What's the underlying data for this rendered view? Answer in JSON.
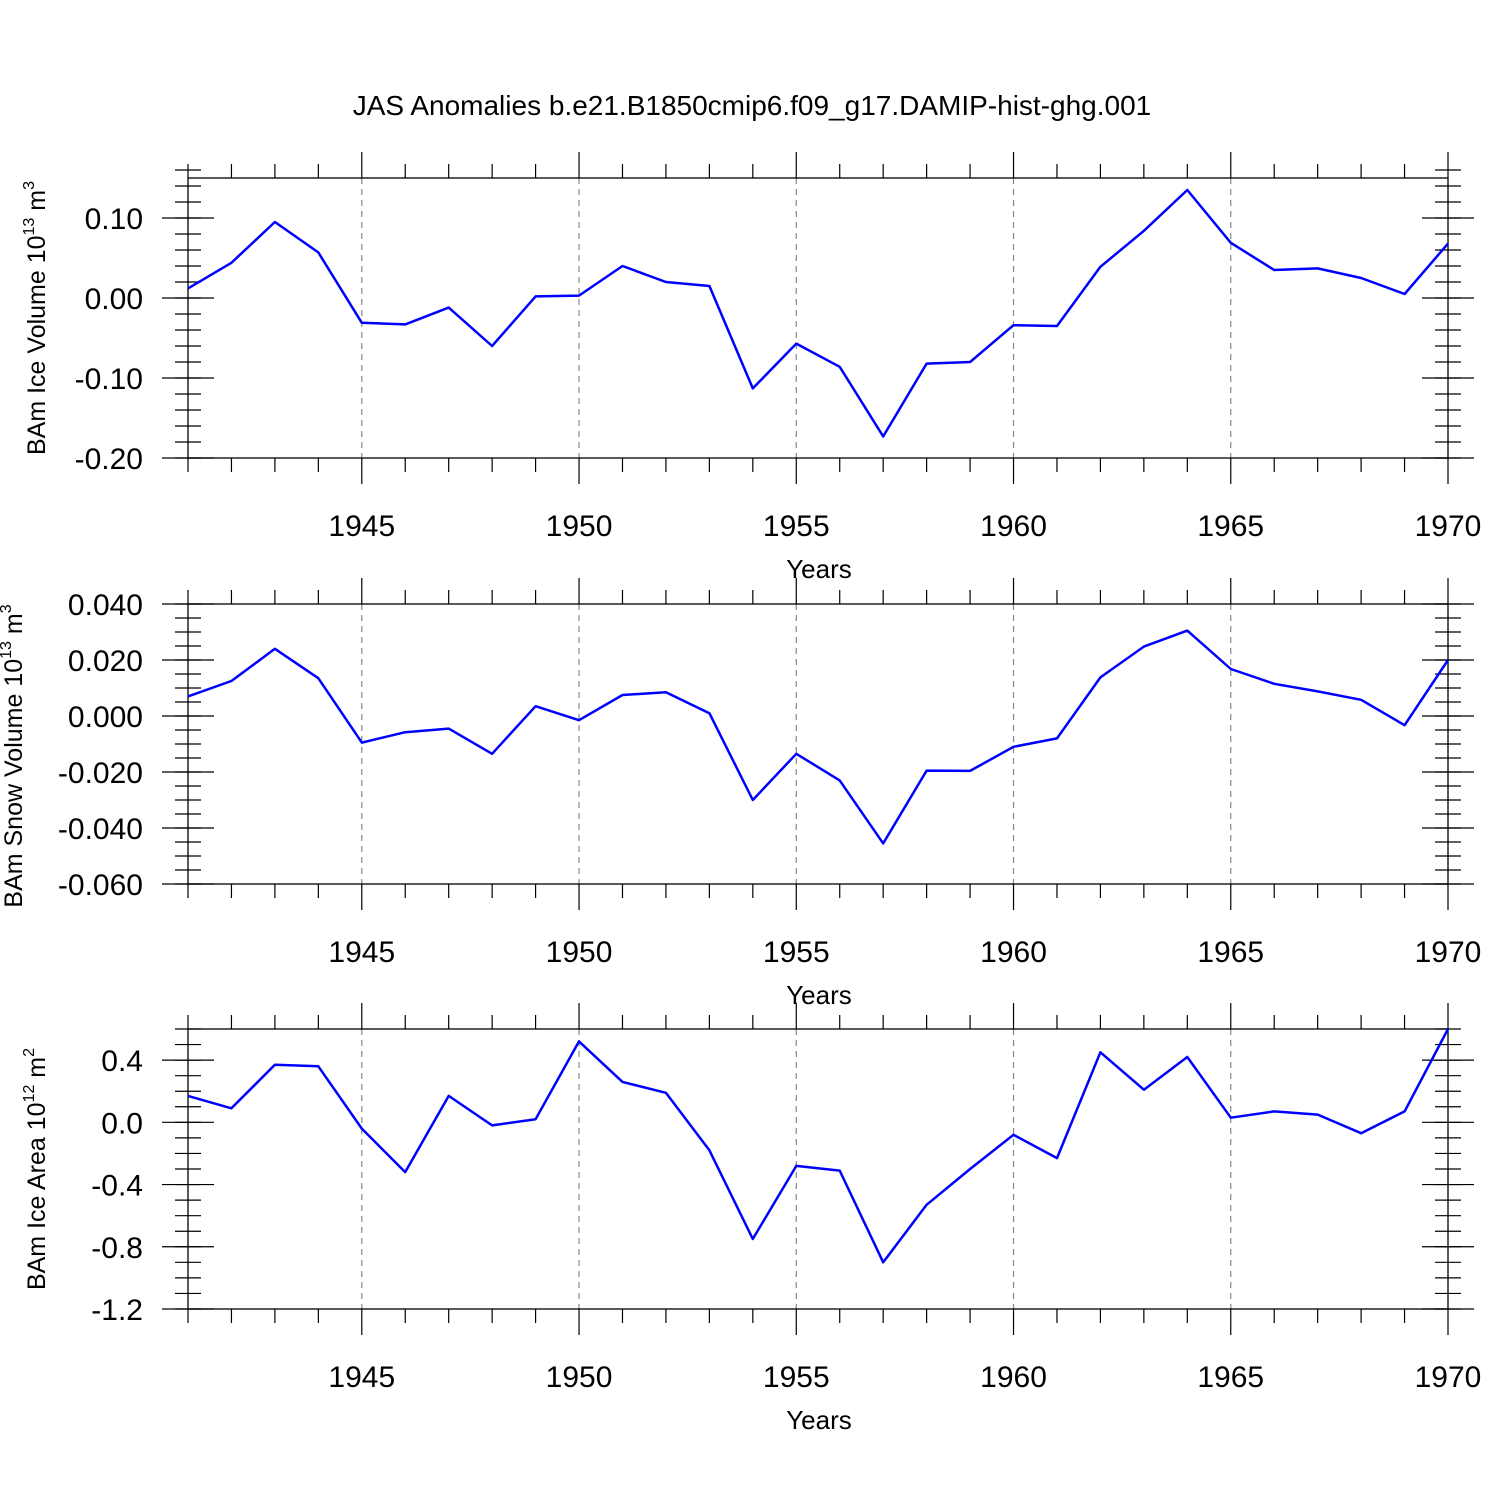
{
  "chart_data": [
    {
      "type": "line",
      "title": "JAS Anomalies b.e21.B1850cmip6.f09_g17.DAMIP-hist-ghg.001",
      "xlabel": "Years",
      "ylabel": "BAm Ice Volume 10",
      "ylabel_exp": "13",
      "ylabel_unit": " m",
      "ylabel_unit_exp": "3",
      "xlim": [
        1941,
        1970
      ],
      "ylim": [
        -0.2,
        0.15
      ],
      "xticks": [
        1945,
        1950,
        1955,
        1960,
        1965,
        1970
      ],
      "xtick_labels": [
        "1945",
        "1950",
        "1955",
        "1960",
        "1965",
        "1970"
      ],
      "yticks": [
        -0.2,
        -0.1,
        0.0,
        0.1
      ],
      "ytick_labels": [
        "-0.20",
        "-0.10",
        "0.00",
        "0.10"
      ],
      "yminor_step": 0.02,
      "grid": "dashed vertical at x major ticks",
      "series_color": "#0000ff",
      "x": [
        1941,
        1942,
        1943,
        1944,
        1945,
        1946,
        1947,
        1948,
        1949,
        1950,
        1951,
        1952,
        1953,
        1954,
        1955,
        1956,
        1957,
        1958,
        1959,
        1960,
        1961,
        1962,
        1963,
        1964,
        1965,
        1966,
        1967,
        1968,
        1969,
        1970
      ],
      "values": [
        0.012,
        0.044,
        0.095,
        0.057,
        -0.031,
        -0.033,
        -0.012,
        -0.06,
        0.002,
        0.003,
        0.04,
        0.02,
        0.015,
        -0.113,
        -0.057,
        -0.086,
        -0.173,
        -0.082,
        -0.08,
        -0.034,
        -0.035,
        0.039,
        0.084,
        0.135,
        0.069,
        0.035,
        0.037,
        0.025,
        0.005,
        0.068
      ]
    },
    {
      "type": "line",
      "title": "",
      "xlabel": "Years",
      "ylabel": "BAm Snow Volume 10",
      "ylabel_exp": "13",
      "ylabel_unit": " m",
      "ylabel_unit_exp": "3",
      "xlim": [
        1941,
        1970
      ],
      "ylim": [
        -0.06,
        0.04
      ],
      "xticks": [
        1945,
        1950,
        1955,
        1960,
        1965,
        1970
      ],
      "xtick_labels": [
        "1945",
        "1950",
        "1955",
        "1960",
        "1965",
        "1970"
      ],
      "yticks": [
        -0.06,
        -0.04,
        -0.02,
        0.0,
        0.02,
        0.04
      ],
      "ytick_labels": [
        "-0.060",
        "-0.040",
        "-0.020",
        "0.000",
        "0.020",
        "0.040"
      ],
      "yminor_step": 0.005,
      "grid": "dashed vertical at x major ticks",
      "series_color": "#0000ff",
      "x": [
        1941,
        1942,
        1943,
        1944,
        1945,
        1946,
        1947,
        1948,
        1949,
        1950,
        1951,
        1952,
        1953,
        1954,
        1955,
        1956,
        1957,
        1958,
        1959,
        1960,
        1961,
        1962,
        1963,
        1964,
        1965,
        1966,
        1967,
        1968,
        1969,
        1970
      ],
      "values": [
        0.007,
        0.0125,
        0.024,
        0.0135,
        -0.0095,
        -0.0058,
        -0.0045,
        -0.0135,
        0.0035,
        -0.0015,
        0.0075,
        0.0085,
        0.001,
        -0.03,
        -0.0135,
        -0.023,
        -0.0455,
        -0.0195,
        -0.0196,
        -0.011,
        -0.008,
        0.0138,
        0.0248,
        0.0305,
        0.0168,
        0.0115,
        0.0088,
        0.0058,
        -0.0033,
        0.02
      ]
    },
    {
      "type": "line",
      "title": "",
      "xlabel": "Years",
      "ylabel": "BAm Ice Area 10",
      "ylabel_exp": "12",
      "ylabel_unit": " m",
      "ylabel_unit_exp": "2",
      "xlim": [
        1941,
        1970
      ],
      "ylim": [
        -1.2,
        0.6
      ],
      "xticks": [
        1945,
        1950,
        1955,
        1960,
        1965,
        1970
      ],
      "xtick_labels": [
        "1945",
        "1950",
        "1955",
        "1960",
        "1965",
        "1970"
      ],
      "yticks": [
        -1.2,
        -0.8,
        -0.4,
        0.0,
        0.4
      ],
      "ytick_labels": [
        "-1.2",
        "-0.8",
        "-0.4",
        "0.0",
        "0.4"
      ],
      "yminor_step": 0.1,
      "grid": "dashed vertical at x major ticks",
      "series_color": "#0000ff",
      "x": [
        1941,
        1942,
        1943,
        1944,
        1945,
        1946,
        1947,
        1948,
        1949,
        1950,
        1951,
        1952,
        1953,
        1954,
        1955,
        1956,
        1957,
        1958,
        1959,
        1960,
        1961,
        1962,
        1963,
        1964,
        1965,
        1966,
        1967,
        1968,
        1969,
        1970
      ],
      "values": [
        0.17,
        0.09,
        0.37,
        0.36,
        -0.04,
        -0.32,
        0.17,
        -0.02,
        0.02,
        0.52,
        0.26,
        0.19,
        -0.18,
        -0.75,
        -0.28,
        -0.31,
        -0.9,
        -0.53,
        -0.3,
        -0.08,
        -0.23,
        0.45,
        0.21,
        0.42,
        0.03,
        0.07,
        0.05,
        -0.07,
        0.07,
        0.6
      ]
    }
  ]
}
